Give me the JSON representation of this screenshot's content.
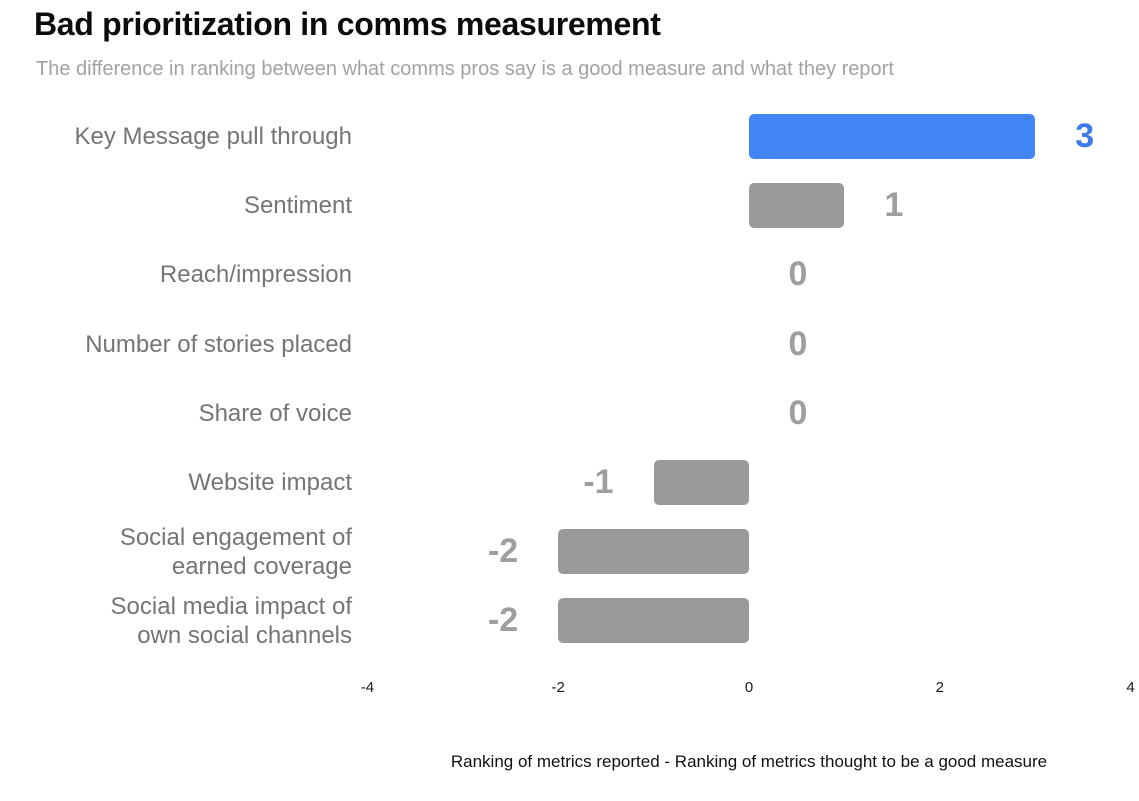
{
  "chart": {
    "title": "Bad prioritization in comms measurement",
    "subtitle": "The difference in ranking between what comms pros say is a good measure and what they report",
    "xlabel": "Ranking of metrics reported - Ranking of metrics thought to be a good measure"
  },
  "chart_data": {
    "type": "bar",
    "orientation": "horizontal",
    "title": "Bad prioritization in comms measurement",
    "subtitle": "The difference in ranking between what comms pros say is a good measure and what they report",
    "xlabel": "Ranking of metrics reported - Ranking of metrics thought to be a good measure",
    "categories": [
      "Key Message pull through",
      "Sentiment",
      "Reach/impression",
      "Number of stories placed",
      "Share of voice",
      "Website impact",
      "Social engagement of\nearned coverage",
      "Social media impact of\nown social channels"
    ],
    "values": [
      3,
      1,
      0,
      0,
      0,
      -1,
      -2,
      -2
    ],
    "value_labels": [
      "3",
      "1",
      "0",
      "0",
      "0",
      "-1",
      "-2",
      "-2"
    ],
    "highlight_index": 0,
    "highlight_color": "#4285f4",
    "highlight_label_color": "#3d7ce8",
    "bar_color": "#9a9a9a",
    "value_label_color": "#9e9e9e",
    "xlim": [
      -4,
      4
    ],
    "xticks": [
      "-4",
      "-2",
      "0",
      "2",
      "4"
    ],
    "grid": false,
    "legend": false
  }
}
